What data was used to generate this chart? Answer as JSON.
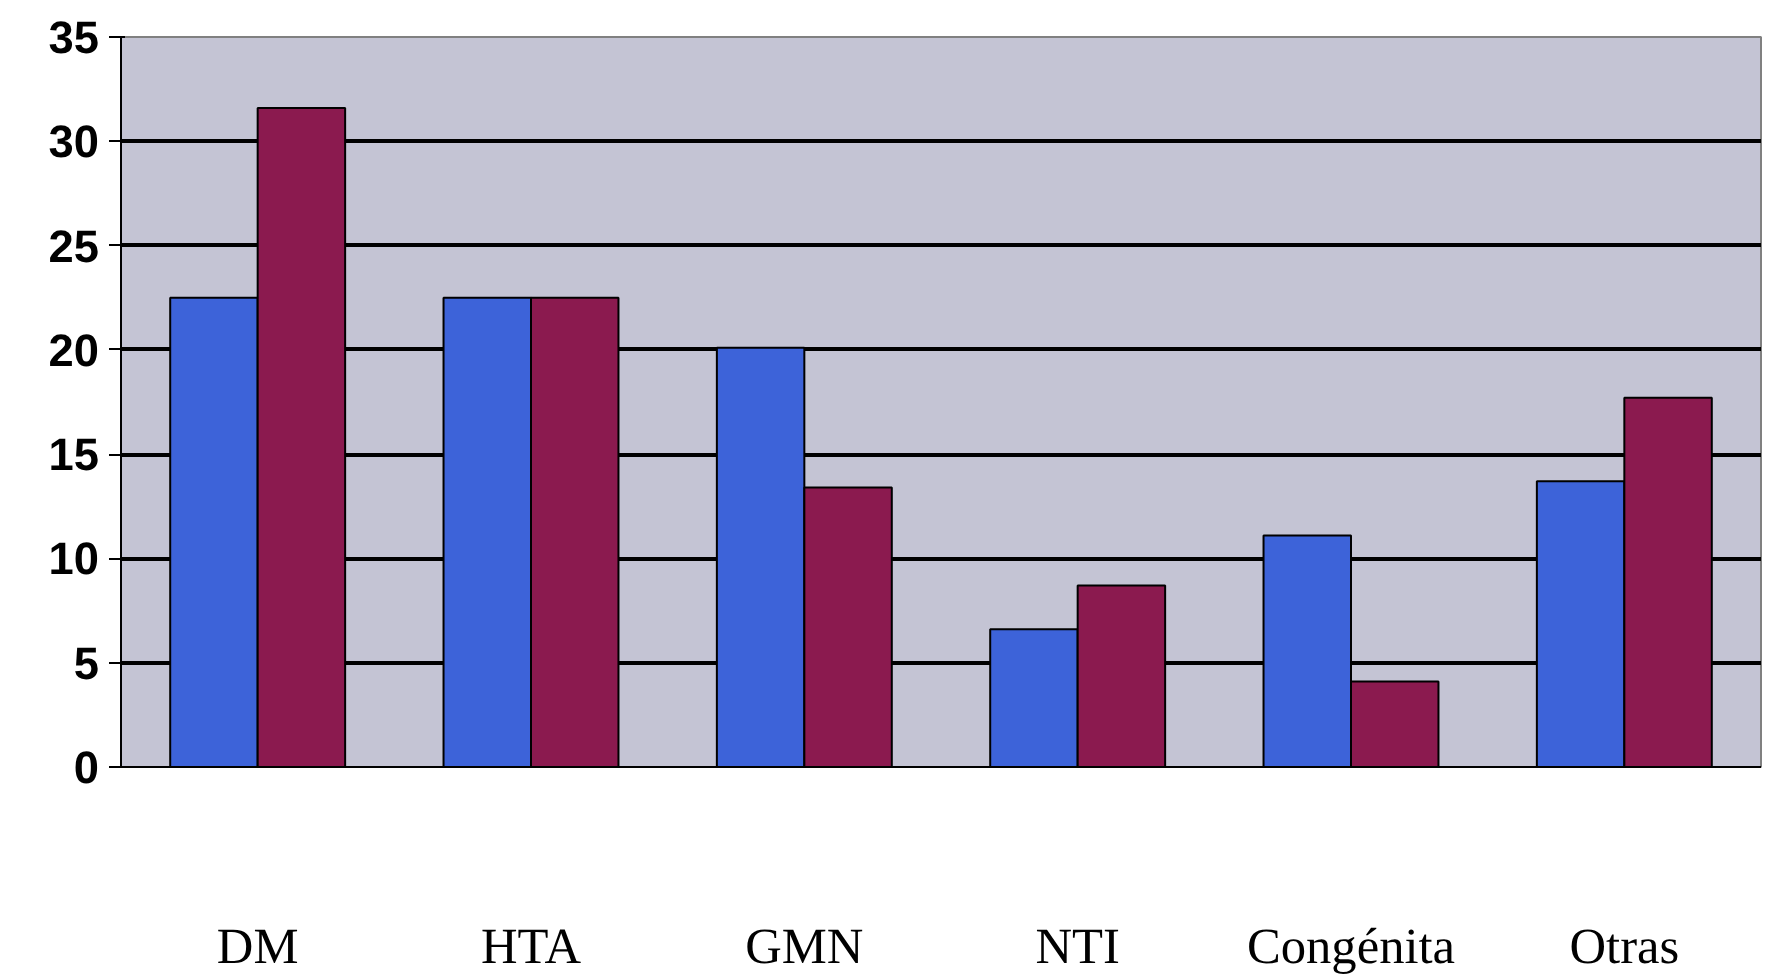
{
  "chart_data": {
    "type": "bar",
    "categories": [
      "DM",
      "HTA",
      "GMN",
      "NTI",
      "Congénita",
      "Otras"
    ],
    "series": [
      {
        "color": "#3d63d9",
        "values": [
          22.5,
          22.5,
          20.1,
          6.6,
          11.1,
          13.7
        ]
      },
      {
        "color": "#8b1a4f",
        "values": [
          31.6,
          22.5,
          13.4,
          8.7,
          4.1,
          17.7
        ]
      }
    ],
    "ylim": [
      0,
      35
    ],
    "yticks": [
      0,
      5,
      10,
      15,
      20,
      25,
      30,
      35
    ],
    "grid": "y"
  }
}
